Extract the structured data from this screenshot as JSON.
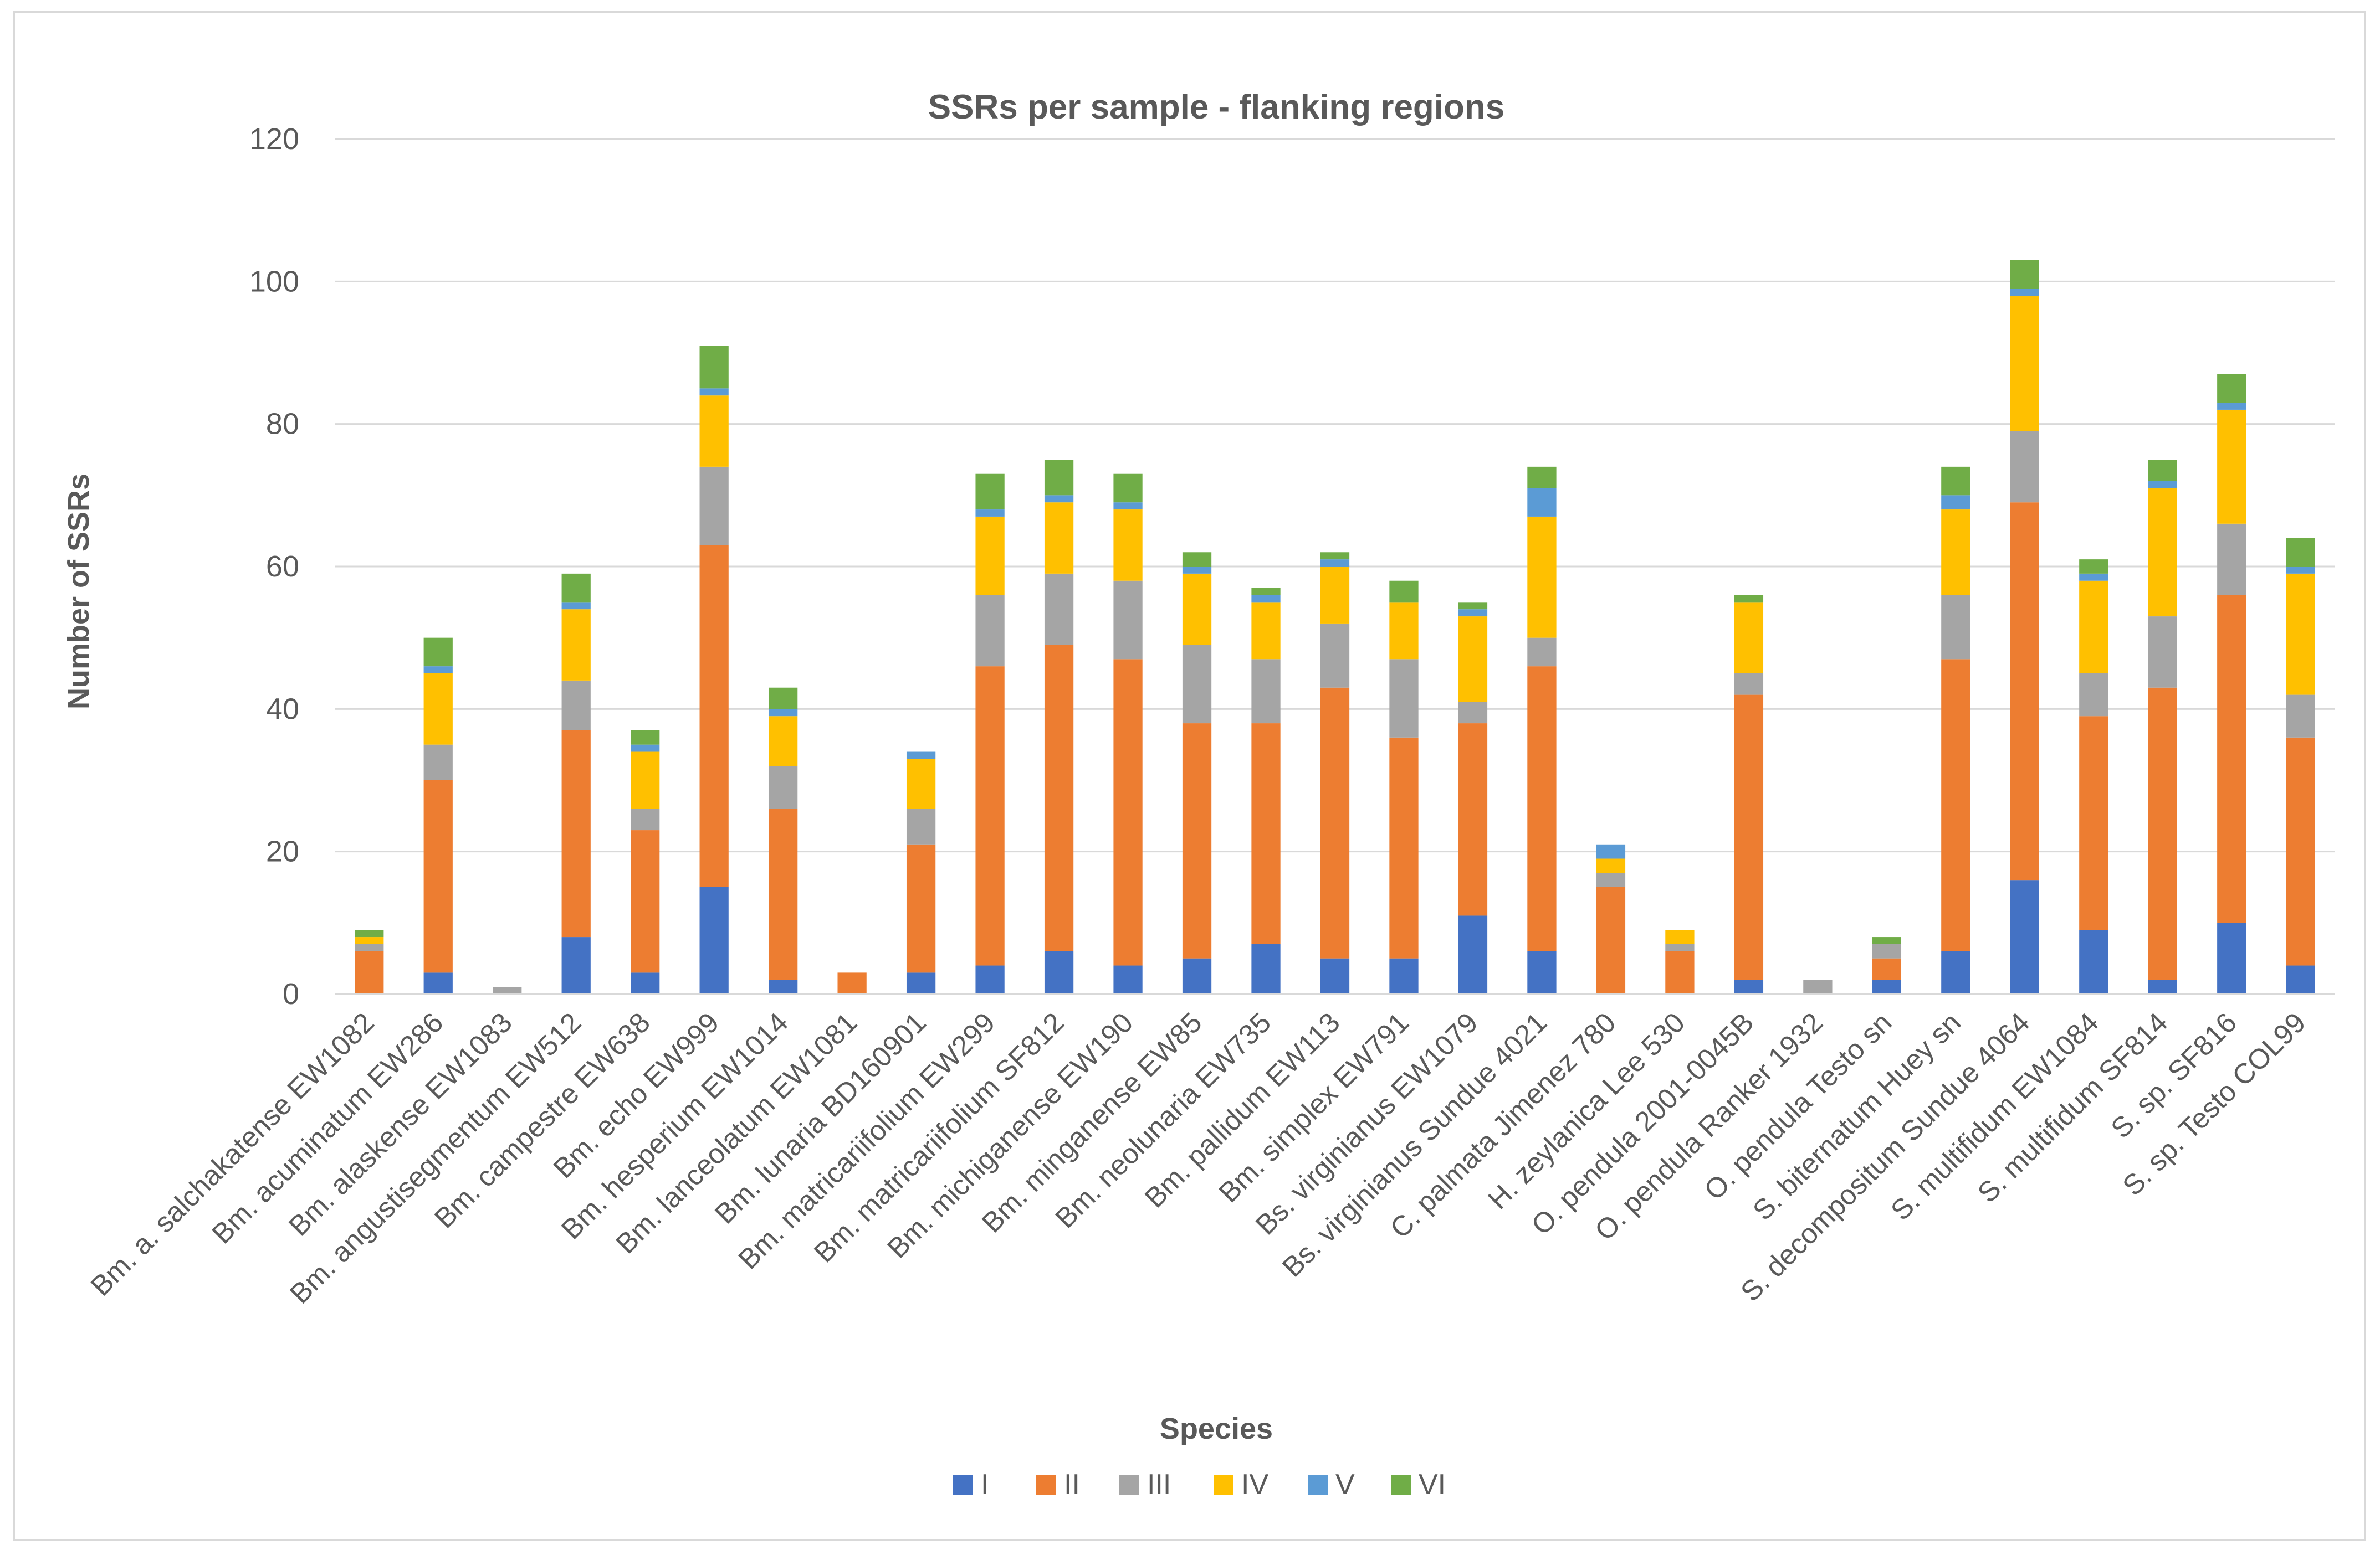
{
  "chart_data": {
    "type": "bar",
    "stacked": true,
    "title": "SSRs per sample - flanking regions",
    "xlabel": "Species",
    "ylabel": "Number of SSRs",
    "ylim": [
      0,
      120
    ],
    "yticks": [
      0,
      20,
      40,
      60,
      80,
      100,
      120
    ],
    "grid": true,
    "legend_position": "bottom",
    "categories": [
      "Bm. a. salchakatense EW1082",
      "Bm. acuminatum EW286",
      "Bm. alaskense EW1083",
      "Bm. angustisegmentum EW512",
      "Bm. campestre EW638",
      "Bm. echo EW999",
      "Bm. hesperium EW1014",
      "Bm. lanceolatum EW1081",
      "Bm. lunaria BD160901",
      "Bm. matricariifolium EW299",
      "Bm. matricariifolium SF812",
      "Bm. michiganense EW190",
      "Bm. minganense EW85",
      "Bm. neolunaria EW735",
      "Bm. pallidum EW113",
      "Bm. simplex EW791",
      "Bs. virginianus EW1079",
      "Bs. virginianus Sundue 4021",
      "C. palmata Jimenez 780",
      "H. zeylanica Lee 530",
      "O. pendula 2001-0045B",
      "O. pendula Ranker 1932",
      "O. pendula Testo sn",
      "S. biternatum Huey sn",
      "S. decompositum Sundue 4064",
      "S. multifidum EW1084",
      "S. multifidum SF814",
      "S. sp. SF816",
      "S. sp. Testo COL99"
    ],
    "series": [
      {
        "name": "I",
        "color": "#4472C4",
        "values": [
          0,
          3,
          0,
          8,
          3,
          15,
          2,
          0,
          3,
          4,
          6,
          4,
          5,
          7,
          5,
          5,
          11,
          6,
          0,
          0,
          2,
          0,
          2,
          6,
          16,
          9,
          2,
          10,
          4
        ]
      },
      {
        "name": "II",
        "color": "#ED7D31",
        "values": [
          6,
          27,
          0,
          29,
          20,
          48,
          24,
          3,
          18,
          42,
          43,
          43,
          33,
          31,
          38,
          31,
          27,
          40,
          15,
          6,
          40,
          0,
          3,
          41,
          53,
          30,
          41,
          46,
          32
        ]
      },
      {
        "name": "III",
        "color": "#A5A5A5",
        "values": [
          1,
          5,
          1,
          7,
          3,
          11,
          6,
          0,
          5,
          10,
          10,
          11,
          11,
          9,
          9,
          11,
          3,
          4,
          2,
          1,
          3,
          2,
          2,
          9,
          10,
          6,
          10,
          10,
          6
        ]
      },
      {
        "name": "IV",
        "color": "#FFC000",
        "values": [
          1,
          10,
          0,
          10,
          8,
          10,
          7,
          0,
          7,
          11,
          10,
          10,
          10,
          8,
          8,
          8,
          12,
          17,
          2,
          2,
          10,
          0,
          0,
          12,
          19,
          13,
          18,
          16,
          17
        ]
      },
      {
        "name": "V",
        "color": "#5B9BD5",
        "values": [
          0,
          1,
          0,
          1,
          1,
          1,
          1,
          0,
          1,
          1,
          1,
          1,
          1,
          1,
          1,
          0,
          1,
          4,
          2,
          0,
          0,
          0,
          0,
          2,
          1,
          1,
          1,
          1,
          1
        ]
      },
      {
        "name": "VI",
        "color": "#70AD47",
        "values": [
          1,
          4,
          0,
          4,
          2,
          6,
          3,
          0,
          0,
          5,
          5,
          4,
          2,
          1,
          1,
          3,
          1,
          3,
          0,
          0,
          1,
          0,
          1,
          4,
          4,
          2,
          3,
          4,
          4
        ]
      }
    ]
  }
}
